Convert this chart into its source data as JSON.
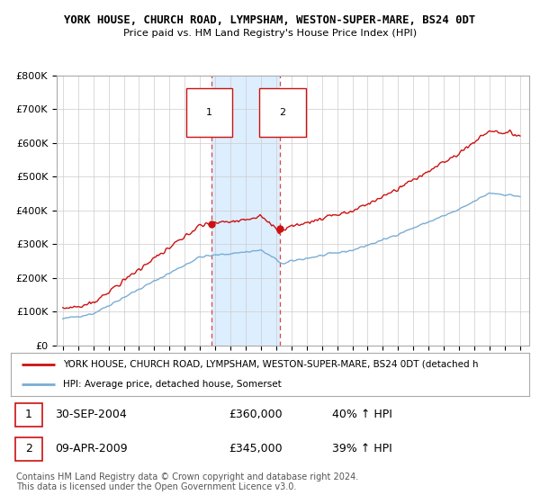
{
  "title1": "YORK HOUSE, CHURCH ROAD, LYMPSHAM, WESTON-SUPER-MARE, BS24 0DT",
  "title2": "Price paid vs. HM Land Registry's House Price Index (HPI)",
  "ylabel_ticks": [
    "£0",
    "£100K",
    "£200K",
    "£300K",
    "£400K",
    "£500K",
    "£600K",
    "£700K",
    "£800K"
  ],
  "ytick_values": [
    0,
    100000,
    200000,
    300000,
    400000,
    500000,
    600000,
    700000,
    800000
  ],
  "ylim": [
    0,
    800000
  ],
  "purchase1_year": 2004.75,
  "purchase1_price": 360000,
  "purchase2_year": 2009.27,
  "purchase2_price": 345000,
  "hpi_line_color": "#7aadd4",
  "price_line_color": "#cc1111",
  "shade_color": "#ddeeff",
  "dashed_line_color": "#dd4444",
  "legend_label1": "YORK HOUSE, CHURCH ROAD, LYMPSHAM, WESTON-SUPER-MARE, BS24 0DT (detached h",
  "legend_label2": "HPI: Average price, detached house, Somerset",
  "table_row1": [
    "1",
    "30-SEP-2004",
    "£360,000",
    "40% ↑ HPI"
  ],
  "table_row2": [
    "2",
    "09-APR-2009",
    "£345,000",
    "39% ↑ HPI"
  ],
  "footnote1": "Contains HM Land Registry data © Crown copyright and database right 2024.",
  "footnote2": "This data is licensed under the Open Government Licence v3.0.",
  "background_color": "#ffffff",
  "grid_color": "#cccccc"
}
